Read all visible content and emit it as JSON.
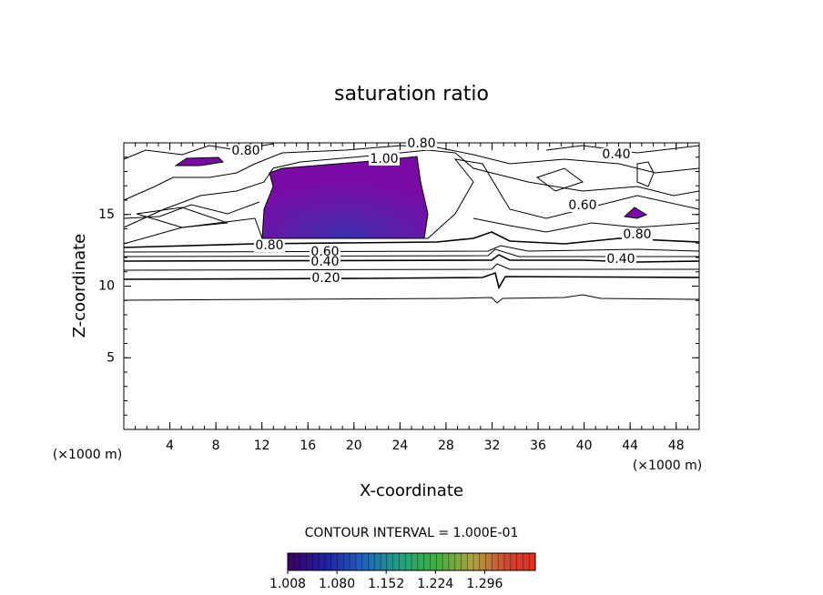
{
  "chart_data": {
    "type": "contour",
    "title": "saturation ratio",
    "x_label": "X-coordinate",
    "y_label": "Z-coordinate",
    "x_unit": "(×1000 m)",
    "y_unit": "(×1000 m)",
    "xlim": [
      0,
      50
    ],
    "xticks": [
      4,
      8,
      12,
      16,
      20,
      24,
      28,
      32,
      36,
      40,
      44,
      48
    ],
    "ylim": [
      0,
      20
    ],
    "yticks": [
      5,
      10,
      15
    ],
    "contour_labels": [
      "0.80",
      "0.80",
      "1.00",
      "0.40",
      "0.60",
      "0.80",
      "0.60",
      "0.40",
      "0.20",
      "0.80",
      "0.40"
    ],
    "contour_interval": "CONTOUR INTERVAL = 1.000E-01",
    "colorbar": {
      "clim": [
        1.008,
        1.37
      ],
      "ticks": [
        1.008,
        {
          "value": 1.08,
          "label": "1.080"
        },
        1.152,
        1.224,
        1.296
      ]
    }
  }
}
